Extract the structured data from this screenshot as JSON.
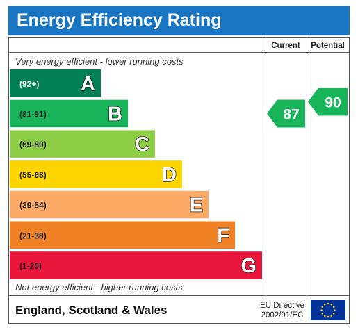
{
  "title": "Energy Efficiency Rating",
  "columns": {
    "current": "Current",
    "potential": "Potential"
  },
  "top_note": "Very energy efficient - lower running costs",
  "bottom_note": "Not energy efficient - higher running costs",
  "footer": {
    "region": "England, Scotland & Wales",
    "directive_line1": "EU Directive",
    "directive_line2": "2002/91/EC"
  },
  "chart_data": {
    "type": "bar",
    "categories": [
      "A",
      "B",
      "C",
      "D",
      "E",
      "F",
      "G"
    ],
    "ranges": [
      "(92+)",
      "(81-91)",
      "(69-80)",
      "(55-68)",
      "(39-54)",
      "(21-38)",
      "(1-20)"
    ],
    "colors": [
      "#008054",
      "#19b459",
      "#8dce46",
      "#ffd500",
      "#fcaa65",
      "#ef8023",
      "#e9153b"
    ],
    "current": {
      "value": 87,
      "band": "B",
      "color": "#19b459"
    },
    "potential": {
      "value": 90,
      "band": "B",
      "color": "#19b459"
    }
  }
}
